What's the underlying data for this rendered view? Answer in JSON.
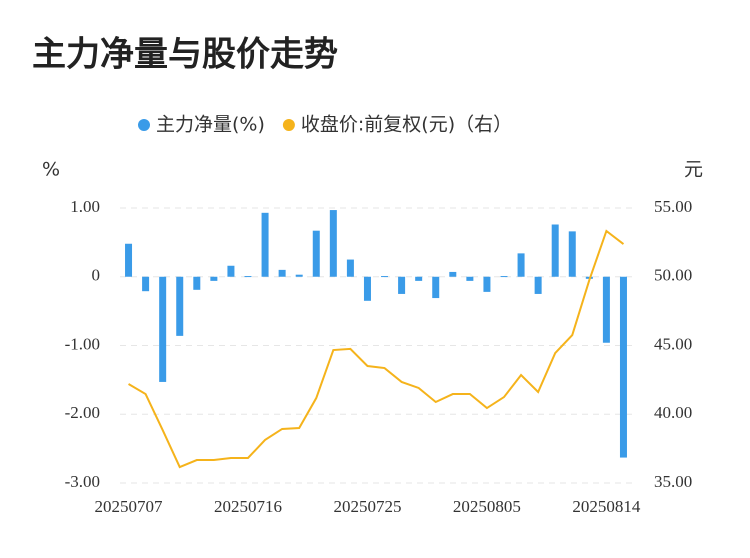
{
  "chart_data": {
    "type": "bar-line",
    "title": "主力净量与股价走势",
    "y_label": "%",
    "y2_label": "元",
    "categories": [
      "20250707",
      null,
      null,
      null,
      null,
      null,
      null,
      "20250716",
      null,
      null,
      null,
      null,
      null,
      null,
      "20250725",
      null,
      null,
      null,
      null,
      null,
      null,
      "20250805",
      null,
      null,
      null,
      null,
      null,
      null,
      "20250814",
      null
    ],
    "series": [
      {
        "name": "主力净量(%)",
        "type": "bar",
        "color": "#3a9be8",
        "values": [
          0.48,
          -0.21,
          -1.53,
          -0.86,
          -0.19,
          -0.06,
          0.16,
          0.01,
          0.93,
          0.1,
          0.03,
          0.67,
          0.97,
          0.25,
          -0.35,
          0.01,
          -0.25,
          -0.06,
          -0.31,
          0.07,
          -0.06,
          -0.22,
          0.01,
          0.34,
          -0.25,
          0.76,
          0.66,
          -0.03,
          -0.96,
          -2.63
        ]
      },
      {
        "name": "收盘价:前复权(元)（右）",
        "type": "line",
        "color": "#f5b31b",
        "axis": "y2",
        "values": [
          42.2,
          41.47,
          38.85,
          36.16,
          36.67,
          36.67,
          36.82,
          36.82,
          38.13,
          38.93,
          39.0,
          41.18,
          44.67,
          44.75,
          43.51,
          43.36,
          42.35,
          41.91,
          40.89,
          41.47,
          41.47,
          40.45,
          41.25,
          42.85,
          41.62,
          44.45,
          45.76,
          49.76,
          53.33,
          52.38
        ]
      }
    ],
    "ylim": [
      -3,
      1
    ],
    "yticks": [
      {
        "value": 1,
        "label": "1.00"
      },
      0,
      {
        "value": -1,
        "label": "-1.00"
      },
      {
        "value": -2,
        "label": "-2.00"
      },
      {
        "value": -3,
        "label": "-3.00"
      }
    ],
    "y2lim": [
      35,
      55
    ],
    "y2ticks": [
      {
        "value": 55,
        "label": "55.00"
      },
      {
        "value": 50,
        "label": "50.00"
      },
      {
        "value": 45,
        "label": "45.00"
      },
      {
        "value": 40,
        "label": "40.00"
      },
      {
        "value": 35,
        "label": "35.00"
      }
    ],
    "grid": true
  }
}
